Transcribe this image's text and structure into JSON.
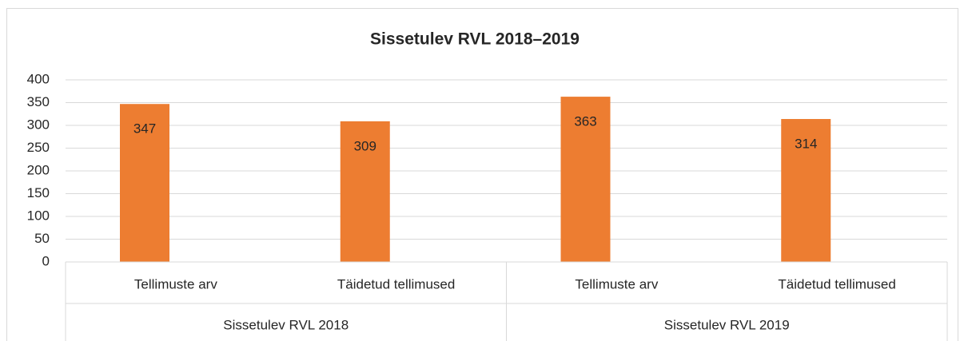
{
  "chart_data": {
    "type": "bar",
    "title": "Sissetulev RVL 2018–2019",
    "groups": [
      "Sissetulev RVL 2018",
      "Sissetulev RVL 2019"
    ],
    "categories": [
      "Tellimuste arv",
      "Täidetud tellimused",
      "Tellimuste arv",
      "Täidetud tellimused"
    ],
    "values": [
      347,
      309,
      363,
      314
    ],
    "color": "#ed7d31",
    "ylim": [
      0,
      400
    ],
    "yticks": [
      0,
      50,
      100,
      150,
      200,
      250,
      300,
      350,
      400
    ],
    "grid": true
  }
}
